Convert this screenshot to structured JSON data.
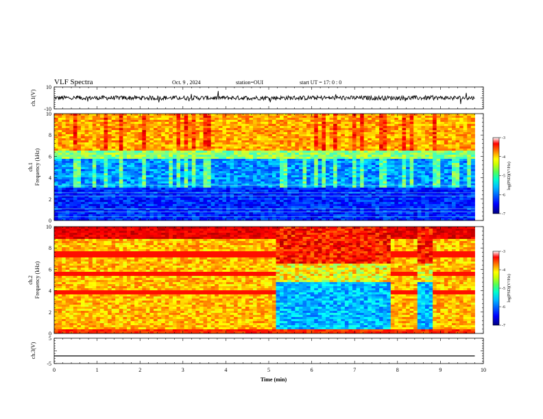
{
  "header": {
    "title": "VLF Spectra",
    "date": "Oct. 9  , 2024",
    "station": "station=OUI",
    "start": "start  UT  =   17: 0  : 0"
  },
  "colors": {
    "jet": [
      "#00007f",
      "#0000ff",
      "#007fff",
      "#00ffff",
      "#7fff7f",
      "#ffff00",
      "#ff7f00",
      "#ff0000",
      "#7f0000"
    ]
  },
  "chart_data": [
    {
      "type": "line",
      "name": "ch1-waveform",
      "ylabel": "ch.1(V)",
      "ylim": [
        -10,
        10
      ],
      "yticks": [
        "10",
        "-10"
      ],
      "baseline": 0,
      "noise_amplitude": 2
    },
    {
      "type": "heatmap",
      "name": "ch1-spectrogram",
      "ylabel_top": "ch.1",
      "ylabel": "Frequency (kHz)",
      "ylim": [
        0,
        10
      ],
      "yticks": [
        "0",
        "2",
        "4",
        "6",
        "8",
        "10"
      ],
      "xlim": [
        0,
        10
      ],
      "colorbar": {
        "label": "log(PSD)(V²/Hz)",
        "ticks": [
          "-3",
          "-4",
          "-5",
          "-6",
          "-7"
        ],
        "range": [
          -7,
          -3
        ]
      },
      "bands": [
        {
          "from_khz": 6.5,
          "to_khz": 10,
          "level": "high"
        },
        {
          "from_khz": 5.8,
          "to_khz": 6.5,
          "level": "mid"
        },
        {
          "from_khz": 3,
          "to_khz": 5.8,
          "level": "low"
        },
        {
          "from_khz": 0,
          "to_khz": 3,
          "level": "very-low"
        }
      ]
    },
    {
      "type": "heatmap",
      "name": "ch2-spectrogram",
      "ylabel_top": "ch.2",
      "ylabel": "Frequency (kHz)",
      "ylim": [
        0,
        10
      ],
      "yticks": [
        "0",
        "2",
        "4",
        "6",
        "8",
        "10"
      ],
      "xlim": [
        0,
        10
      ],
      "colorbar": {
        "label": "log(PSD)(V²/Hz)",
        "ticks": [
          "-3",
          "-4",
          "-5",
          "-6",
          "-7"
        ],
        "range": [
          -7,
          -3
        ]
      },
      "quiet_segments_min": [
        [
          5.2,
          7.85
        ],
        [
          8.5,
          8.8
        ]
      ]
    },
    {
      "type": "line",
      "name": "ch3-waveform",
      "ylabel": "ch.3(V)",
      "ylim": [
        -5,
        5
      ],
      "yticks": [
        "5",
        "-5"
      ],
      "value": -2
    }
  ],
  "xaxis": {
    "label": "Time (min)",
    "ticks": [
      "0",
      "1",
      "2",
      "3",
      "4",
      "5",
      "6",
      "7",
      "8",
      "9",
      "10"
    ],
    "range": [
      0,
      10
    ]
  }
}
